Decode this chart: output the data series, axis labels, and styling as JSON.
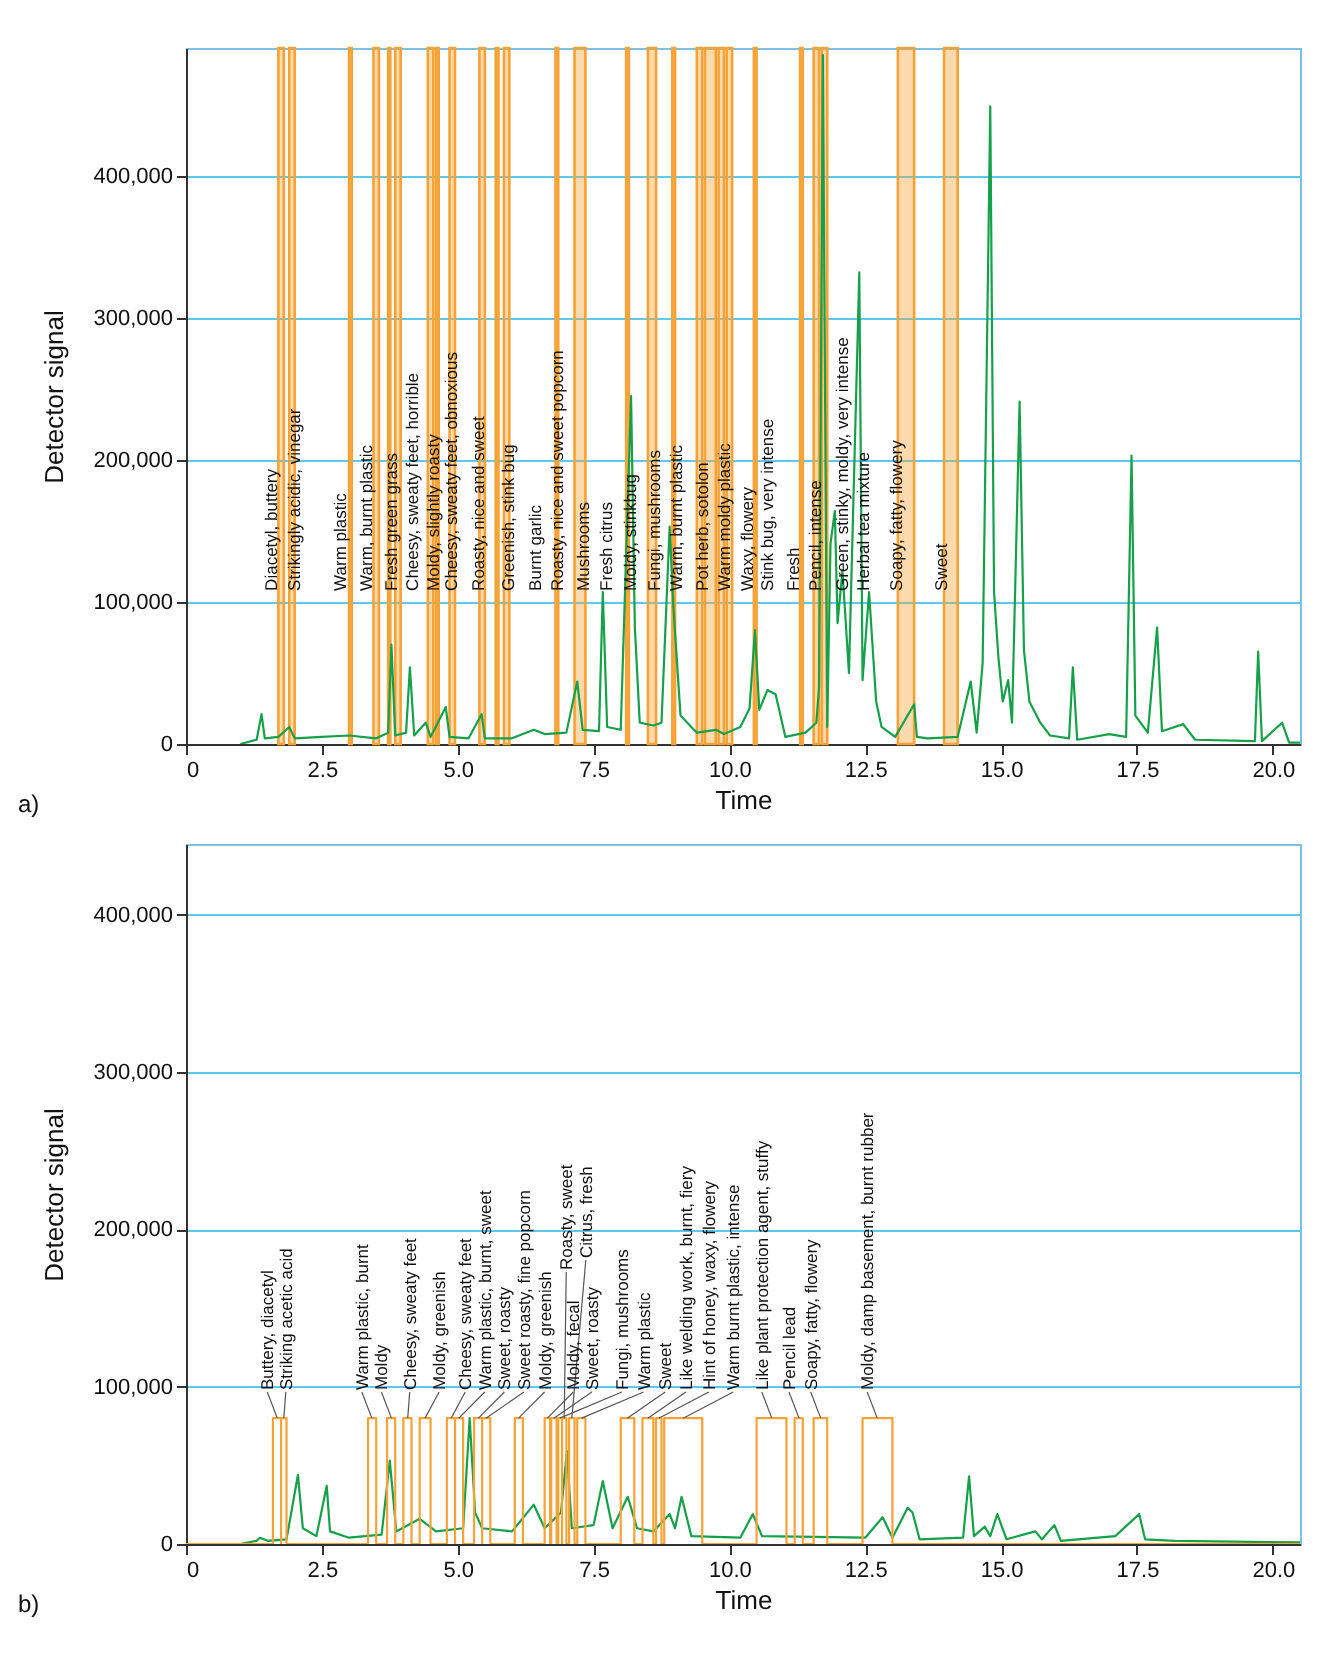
{
  "chart_data": [
    {
      "type": "line",
      "annotations": [
        "a)"
      ],
      "xlabel": "Time",
      "ylabel": "Detector signal",
      "xlim": [
        0,
        20.5
      ],
      "xticks": [
        0,
        2.5,
        {
          "value": 5,
          "label": "5.0"
        },
        7.5,
        {
          "value": 10,
          "label": "10.0"
        },
        12.5,
        {
          "value": 15,
          "label": "15.0"
        },
        17.5,
        {
          "value": 20,
          "label": "20.0"
        }
      ],
      "ylim": [
        0,
        490000
      ],
      "yticks": [
        0,
        {
          "value": 100000,
          "label": "100,000"
        },
        {
          "value": 200000,
          "label": "200,000"
        },
        {
          "value": 300000,
          "label": "300,000"
        },
        {
          "value": 400000,
          "label": "400,000"
        }
      ],
      "grid": "y",
      "series": [
        {
          "color": "#16a04a",
          "x": [
            1.0,
            1.3,
            1.39,
            1.45,
            1.7,
            1.9,
            2.0,
            2.5,
            3.0,
            3.5,
            3.72,
            3.78,
            3.85,
            4.05,
            4.12,
            4.2,
            4.41,
            4.5,
            4.78,
            4.85,
            5.2,
            5.44,
            5.5,
            6.0,
            6.4,
            6.6,
            7.0,
            7.2,
            7.3,
            7.6,
            7.67,
            7.75,
            8.0,
            8.19,
            8.26,
            8.35,
            8.6,
            8.75,
            8.9,
            8.97,
            9.1,
            9.4,
            9.75,
            9.9,
            10.2,
            10.37,
            10.47,
            10.55,
            10.7,
            10.85,
            11.03,
            11.4,
            11.6,
            11.65,
            11.72,
            11.8,
            11.86,
            11.94,
            11.99,
            12.08,
            12.2,
            12.39,
            12.45,
            12.57,
            12.7,
            12.8,
            13.05,
            13.4,
            13.45,
            13.65,
            14.2,
            14.44,
            14.55,
            14.66,
            14.8,
            14.87,
            14.95,
            15.03,
            15.13,
            15.2,
            15.34,
            15.42,
            15.52,
            15.72,
            15.9,
            16.25,
            16.32,
            16.4,
            16.99,
            17.3,
            17.4,
            17.47,
            17.7,
            17.87,
            17.96,
            18.35,
            18.57,
            19.67,
            19.73,
            19.8,
            20.17,
            20.3,
            20.5
          ],
          "values": [
            0,
            3000,
            21000,
            4000,
            5000,
            12000,
            4000,
            5000,
            6000,
            4000,
            8000,
            70000,
            6000,
            8000,
            54000,
            6000,
            15000,
            5000,
            26000,
            5000,
            4000,
            21000,
            4000,
            4000,
            10000,
            7000,
            8000,
            44000,
            10000,
            9000,
            107000,
            12000,
            10000,
            245000,
            82000,
            15000,
            13000,
            15000,
            153000,
            96000,
            20000,
            8000,
            10000,
            7000,
            12000,
            25000,
            80000,
            24000,
            38000,
            35000,
            5000,
            8000,
            15000,
            40000,
            485000,
            12000,
            141000,
            164000,
            85000,
            122000,
            50000,
            332000,
            45000,
            107000,
            30000,
            12000,
            5000,
            28000,
            5000,
            4000,
            5000,
            44000,
            8000,
            57000,
            449000,
            107000,
            61000,
            30000,
            45000,
            15000,
            241000,
            66000,
            30000,
            15000,
            6000,
            4000,
            54000,
            3000,
            7000,
            5000,
            203000,
            20000,
            8000,
            82000,
            9000,
            14000,
            3000,
            2000,
            65000,
            2000,
            15000,
            1000,
            1000
          ]
        }
      ],
      "bands": [
        {
          "axis": "x",
          "from": 1.7,
          "to": 1.8,
          "label": "Diacetyl, buttery",
          "color": "#f7a235"
        },
        {
          "axis": "x",
          "from": 1.9,
          "to": 2.0,
          "label": "Strikingly acidic, vinegar",
          "color": "#f7a235"
        },
        {
          "axis": "x",
          "from": 3.0,
          "to": 3.05,
          "label": "Warm plastic",
          "color": "#f7a235"
        },
        {
          "axis": "x",
          "from": 3.45,
          "to": 3.55,
          "label": "Warm, burnt plastic",
          "color": "#f7a235"
        },
        {
          "axis": "x",
          "from": 3.72,
          "to": 3.76,
          "label": "Fresh green grass",
          "color": "#f7a235"
        },
        {
          "axis": "x",
          "from": 3.85,
          "to": 3.95,
          "label": "Cheesy, sweaty feet, horrible",
          "color": "#f7a235"
        },
        {
          "axis": "x",
          "from": 4.45,
          "to": 4.55,
          "label": "Moldy, slightly roasty",
          "color": "#f7a235"
        },
        {
          "axis": "x",
          "from": 4.6,
          "to": 4.65,
          "label": "Cheesy, sweaty feet, obnoxious",
          "color": "#f7a235"
        },
        {
          "axis": "x",
          "from": 4.85,
          "to": 4.95,
          "label": "Roasty, nice and sweet",
          "color": "#f7a235"
        },
        {
          "axis": "x",
          "from": 5.4,
          "to": 5.5,
          "label": "Greenish, stink bug",
          "color": "#f7a235"
        },
        {
          "axis": "x",
          "from": 5.7,
          "to": 5.75,
          "label": "Burnt garlic",
          "color": "#f7a235"
        },
        {
          "axis": "x",
          "from": 5.85,
          "to": 5.95,
          "label": "Roasty, nice and sweet popcorn",
          "color": "#f7a235"
        },
        {
          "axis": "x",
          "from": 6.8,
          "to": 6.85,
          "label": "Mushrooms",
          "color": "#f7a235"
        },
        {
          "axis": "x",
          "from": 7.15,
          "to": 7.35,
          "label": "Fresh citrus",
          "color": "#f7a235"
        },
        {
          "axis": "x",
          "from": 8.1,
          "to": 8.15,
          "label": "Moldy, stinkbug",
          "color": "#f7a235"
        },
        {
          "axis": "x",
          "from": 8.5,
          "to": 8.65,
          "label": "Fungi, mushrooms",
          "color": "#f7a235"
        },
        {
          "axis": "x",
          "from": 8.95,
          "to": 9.0,
          "label": "Warm, burnt plastic",
          "color": "#f7a235"
        },
        {
          "axis": "x",
          "from": 9.4,
          "to": 9.5,
          "label": "Pot herb, sotolon",
          "color": "#f7a235"
        },
        {
          "axis": "x",
          "from": 9.55,
          "to": 9.75,
          "label": "Warm moldy plastic",
          "color": "#f7a235"
        },
        {
          "axis": "x",
          "from": 9.8,
          "to": 9.9,
          "label": "Waxy, flowery",
          "color": "#f7a235"
        },
        {
          "axis": "x",
          "from": 9.95,
          "to": 10.05,
          "label": "Stink bug, very intense",
          "color": "#f7a235"
        },
        {
          "axis": "x",
          "from": 10.45,
          "to": 10.5,
          "label": "Fresh",
          "color": "#f7a235"
        },
        {
          "axis": "x",
          "from": 11.3,
          "to": 11.35,
          "label": "Pencil, intense",
          "color": "#f7a235"
        },
        {
          "axis": "x",
          "from": 11.55,
          "to": 11.65,
          "label": "Green, stinky, moldy, very intense",
          "color": "#f7a235"
        },
        {
          "axis": "x",
          "from": 11.7,
          "to": 11.8,
          "label": "Herbal tea mixture",
          "color": "#f7a235"
        },
        {
          "axis": "x",
          "from": 13.1,
          "to": 13.4,
          "label": "Soapy, fatty, flowery",
          "color": "#f7a235"
        },
        {
          "axis": "x",
          "from": 13.95,
          "to": 14.2,
          "label": "Sweet",
          "color": "#f7a235"
        }
      ]
    },
    {
      "type": "line",
      "xlabel": "Time",
      "ylabel": "Detector signal",
      "xlim": [
        0,
        20.5
      ],
      "xticks": [
        0,
        2.5,
        {
          "value": 5,
          "label": "5.0"
        },
        7.5,
        {
          "value": 10,
          "label": "10.0"
        },
        12.5,
        {
          "value": 15,
          "label": "15.0"
        },
        17.5,
        {
          "value": 20,
          "label": "20.0"
        }
      ],
      "ylim": [
        0,
        445000
      ],
      "yticks": [
        0,
        {
          "value": 100000,
          "label": "100,000"
        },
        {
          "value": 200000,
          "label": "200,000"
        },
        {
          "value": 300000,
          "label": "300,000"
        },
        {
          "value": 400000,
          "label": "400,000"
        }
      ],
      "grid": "y",
      "series": [
        {
          "color": "#16a04a",
          "x": [
            1.0,
            1.3,
            1.36,
            1.5,
            1.85,
            2.06,
            2.15,
            2.4,
            2.59,
            2.65,
            3.0,
            3.6,
            3.75,
            3.87,
            4.3,
            4.6,
            5.1,
            5.22,
            5.32,
            5.45,
            6.0,
            6.4,
            6.6,
            6.9,
            7.01,
            7.1,
            7.5,
            7.67,
            7.85,
            8.13,
            8.3,
            8.6,
            8.9,
            9.0,
            9.12,
            9.3,
            10.2,
            10.43,
            10.6,
            12.5,
            12.82,
            13.0,
            13.28,
            13.37,
            13.5,
            14.3,
            14.41,
            14.5,
            14.7,
            14.8,
            14.93,
            15.1,
            15.63,
            15.75,
            15.98,
            16.1,
            17.1,
            17.54,
            17.65,
            18.2,
            20.5
          ],
          "values": [
            0,
            2000,
            4000,
            2000,
            3000,
            44000,
            10000,
            5000,
            37000,
            8000,
            4000,
            6000,
            53000,
            8000,
            16000,
            8000,
            10000,
            80000,
            20000,
            10000,
            8000,
            25000,
            10000,
            20000,
            59000,
            10000,
            12000,
            40000,
            10000,
            30000,
            10000,
            8000,
            19000,
            10000,
            30000,
            5000,
            4000,
            19000,
            5000,
            4000,
            17000,
            4000,
            23000,
            20000,
            3000,
            4000,
            43000,
            5000,
            11000,
            5000,
            19000,
            3000,
            8000,
            3000,
            12000,
            2000,
            5000,
            19000,
            3000,
            2000,
            1000
          ]
        },
        {
          "type": "step",
          "color": "#f7a235",
          "x": [
            0,
            1.6,
            1.75,
            1.75,
            1.85,
            3.35,
            3.5,
            3.7,
            3.85,
            4.0,
            4.15,
            4.3,
            4.5,
            4.8,
            4.95,
            4.95,
            5.1,
            5.3,
            5.45,
            5.45,
            5.6,
            6.05,
            6.2,
            6.6,
            6.7,
            6.72,
            6.82,
            6.85,
            6.92,
            6.92,
            7.0,
            7.05,
            7.15,
            7.2,
            7.35,
            8.0,
            8.25,
            8.4,
            8.6,
            8.65,
            8.75,
            8.8,
            9.5,
            10.5,
            11.05,
            11.2,
            11.35,
            11.55,
            11.8,
            12.45,
            13.0,
            20.5
          ],
          "values": [
            0,
            80000,
            0,
            80000,
            0,
            80000,
            0,
            80000,
            0,
            80000,
            0,
            80000,
            0,
            80000,
            0,
            80000,
            0,
            80000,
            0,
            80000,
            0,
            80000,
            0,
            80000,
            0,
            80000,
            0,
            80000,
            0,
            80000,
            0,
            80000,
            0,
            80000,
            0,
            80000,
            0,
            80000,
            0,
            80000,
            0,
            80000,
            0,
            80000,
            0,
            80000,
            0,
            80000,
            0,
            80000,
            0,
            0
          ]
        }
      ],
      "annotations": [
        "b)",
        {
          "text": "Buttery, diacetyl",
          "x": 1.68,
          "y": 80000
        },
        {
          "text": "Striking acetic acid",
          "x": 1.8,
          "y": 80000
        },
        {
          "text": "Warm plastic, burnt",
          "x": 3.42,
          "y": 80000
        },
        {
          "text": "Moldy",
          "x": 3.78,
          "y": 80000
        },
        {
          "text": "Cheesy, sweaty feet",
          "x": 4.08,
          "y": 80000
        },
        {
          "text": "Moldy, greenish",
          "x": 4.4,
          "y": 80000
        },
        {
          "text": "Cheesy, sweaty feet",
          "x": 4.88,
          "y": 80000
        },
        {
          "text": "Warm plastic, burnt, sweet",
          "x": 5.02,
          "y": 80000
        },
        {
          "text": "Sweet, roasty",
          "x": 5.38,
          "y": 80000
        },
        {
          "text": "Sweet roasty, fine popcorn",
          "x": 5.52,
          "y": 80000
        },
        {
          "text": "Moldy, greenish",
          "x": 6.12,
          "y": 80000
        },
        {
          "text": "Moldy, fecal",
          "x": 6.65,
          "y": 80000
        },
        {
          "text": "Sweet, roasty",
          "x": 6.77,
          "y": 80000
        },
        {
          "text": "Fungi, mushrooms",
          "x": 6.88,
          "y": 80000
        },
        {
          "text": "Roasty, sweet",
          "x": 6.96,
          "y": 80000
        },
        {
          "text": "Citrus, fresh",
          "x": 7.1,
          "y": 80000
        },
        {
          "text": "Warm plastic",
          "x": 7.28,
          "y": 80000
        },
        {
          "text": "Sweet",
          "x": 8.12,
          "y": 80000
        },
        {
          "text": "Like welding work, burnt, fiery",
          "x": 8.5,
          "y": 80000
        },
        {
          "text": "Hint of honey, waxy, flowery",
          "x": 8.7,
          "y": 80000
        },
        {
          "text": "Warm burnt plastic, intense",
          "x": 9.15,
          "y": 80000
        },
        {
          "text": "Like plant protection agent, stuffy",
          "x": 10.78,
          "y": 80000
        },
        {
          "text": "Pencil lead",
          "x": 11.28,
          "y": 80000
        },
        {
          "text": "Soapy, fatty, flowery",
          "x": 11.68,
          "y": 80000
        },
        {
          "text": "Moldy, damp basement, burnt rubber",
          "x": 12.72,
          "y": 80000
        }
      ]
    }
  ]
}
